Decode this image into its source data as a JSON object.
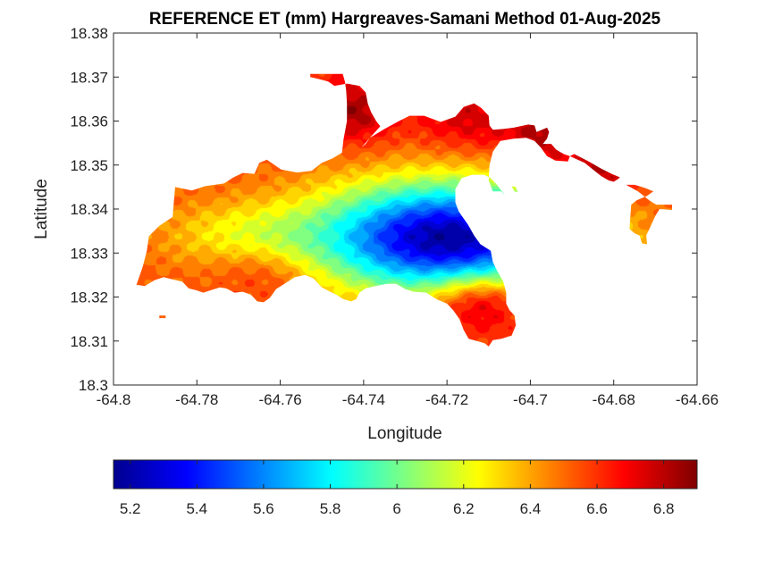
{
  "chart_data": {
    "type": "heatmap",
    "title": "REFERENCE ET (mm) Hargreaves-Samani Method  01-Aug-2025",
    "xlabel": "Longitude",
    "ylabel": "Latitude",
    "xlim": [
      -64.8,
      -64.66
    ],
    "ylim": [
      18.3,
      18.38
    ],
    "xticks": [
      "-64.8",
      "-64.78",
      "-64.76",
      "-64.74",
      "-64.72",
      "-64.7",
      "-64.68",
      "-64.66"
    ],
    "yticks": [
      "18.3",
      "18.31",
      "18.32",
      "18.33",
      "18.34",
      "18.35",
      "18.36",
      "18.37",
      "18.38"
    ],
    "colorbar": {
      "colormap": "jet",
      "orientation": "horizontal",
      "location": "bottom",
      "range": [
        5.15,
        6.9
      ],
      "ticks": [
        "5.2",
        "5.4",
        "5.6",
        "5.8",
        "6",
        "6.2",
        "6.4",
        "6.6",
        "6.8"
      ]
    },
    "value_range": [
      5.15,
      6.9
    ],
    "low_center": {
      "lon": -64.72,
      "lat": 18.3335,
      "value": 5.2
    },
    "high_regions": [
      {
        "lon": -64.744,
        "lat": 18.3625,
        "value": 6.85
      },
      {
        "lon": -64.7155,
        "lat": 18.3615,
        "value": 6.75
      },
      {
        "lon": -64.6955,
        "lat": 18.3585,
        "value": 6.85
      },
      {
        "lon": -64.6835,
        "lat": 18.3495,
        "value": 6.8
      },
      {
        "lon": -64.7115,
        "lat": 18.3165,
        "value": 6.7
      },
      {
        "lon": -64.767,
        "lat": 18.3225,
        "value": 6.55
      }
    ],
    "grid": false
  }
}
